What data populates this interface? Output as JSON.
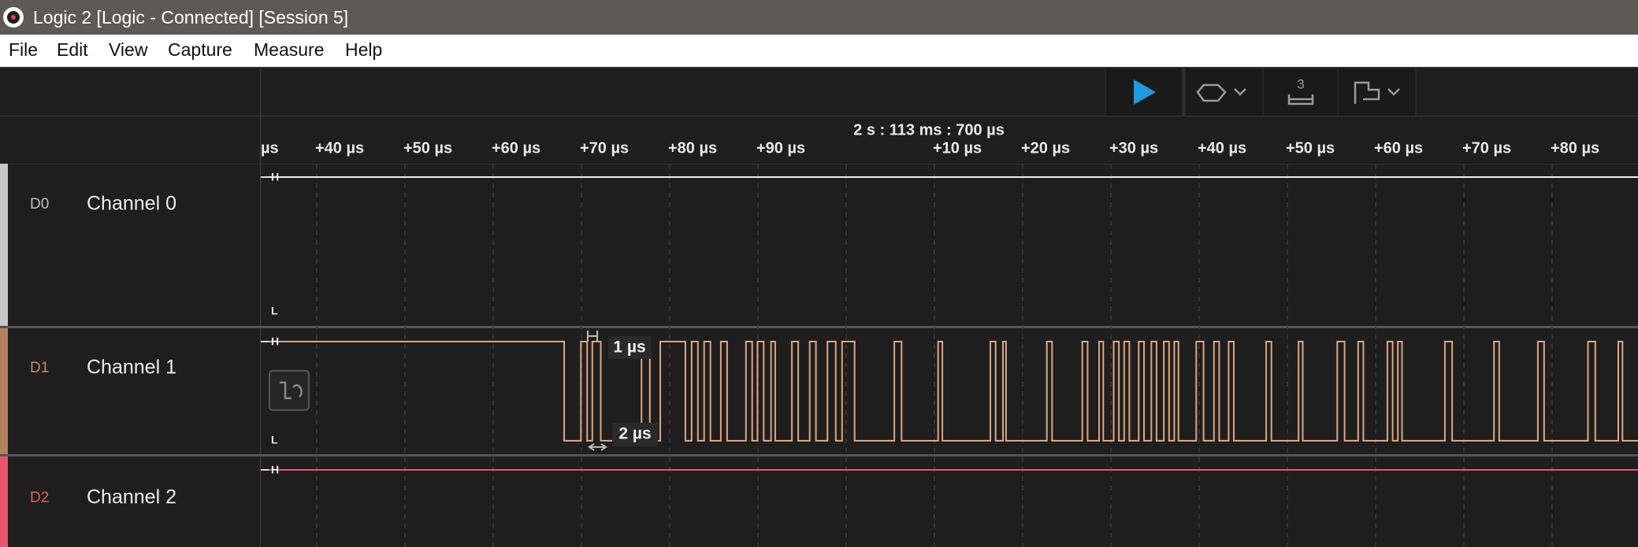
{
  "window": {
    "title": "Logic 2 [Logic - Connected] [Session 5]"
  },
  "menu": [
    "File",
    "Edit",
    "View",
    "Capture",
    "Measure",
    "Help"
  ],
  "toolbar": {
    "trigger_count": "3"
  },
  "timeline": {
    "timestamp": "2 s : 113 ms : 700 µs",
    "clipped_tick": "µs",
    "ticks_before": [
      "+40 µs",
      "+50 µs",
      "+60 µs",
      "+70 µs",
      "+80 µs",
      "+90 µs"
    ],
    "ticks_after": [
      "+10 µs",
      "+20 µs",
      "+30 µs",
      "+40 µs",
      "+50 µs",
      "+60 µs",
      "+70 µs",
      "+80 µs"
    ]
  },
  "channels": [
    {
      "id": "D0",
      "name": "Channel 0",
      "high": "H",
      "low": "L"
    },
    {
      "id": "D1",
      "name": "Channel 1",
      "high": "H",
      "low": "L"
    },
    {
      "id": "D2",
      "name": "Channel 2",
      "high": "H"
    }
  ],
  "measurements": {
    "pulse_width": "1 µs",
    "period": "2 µs"
  }
}
